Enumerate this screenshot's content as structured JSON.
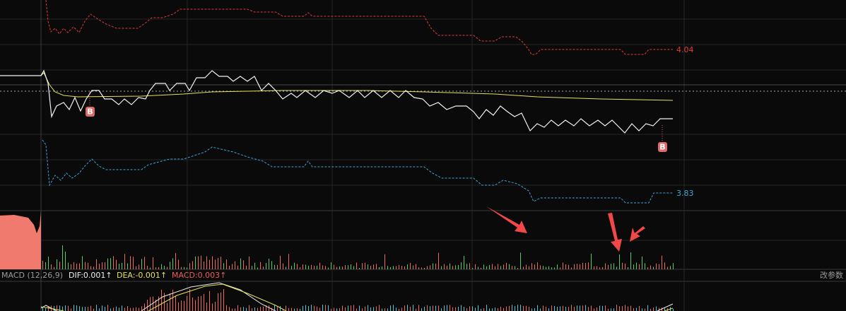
{
  "price_panel": {
    "upper_label": "4.04",
    "lower_label": "3.83",
    "signals": [
      "B",
      "B"
    ]
  },
  "macd_panel": {
    "name": "MACD (12,26,9)",
    "dif": "DIF:0.001↑",
    "dea": "DEA:-0.001↑",
    "macd": "MACD:0.003↑",
    "settings_button": "改参数"
  }
}
